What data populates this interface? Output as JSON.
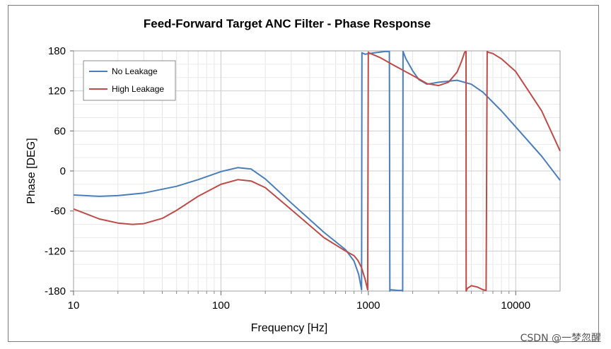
{
  "watermark": "CSDN @一梦忽醒",
  "chart_data": {
    "type": "line",
    "title": "Feed-Forward Target ANC Filter - Phase Response",
    "xlabel": "Frequency [Hz]",
    "ylabel": "Phase [DEG]",
    "xscale": "log",
    "xlim": [
      10,
      20000
    ],
    "ylim": [
      -180,
      180
    ],
    "xticks": [
      10,
      100,
      1000,
      10000
    ],
    "xtick_labels": [
      "10",
      "100",
      "1000",
      "10000"
    ],
    "yticks": [
      -180,
      -120,
      -60,
      0,
      60,
      120,
      180
    ],
    "ytick_labels": [
      "-180",
      "-120",
      "-60",
      "0",
      "60",
      "120",
      "180"
    ],
    "grid": true,
    "legend_position": "top-left",
    "series": [
      {
        "name": "No Leakage",
        "color": "#4a7ebb",
        "x": [
          10,
          15,
          20,
          30,
          50,
          70,
          100,
          130,
          160,
          200,
          300,
          500,
          700,
          800,
          860,
          900,
          905,
          950,
          1100,
          1300,
          1390,
          1400,
          1410,
          1600,
          1700,
          1710,
          1720,
          1800,
          2000,
          2200,
          2500,
          3000,
          4000,
          5000,
          6000,
          8000,
          10000,
          15000,
          20000
        ],
        "y": [
          -36,
          -38,
          -37,
          -33,
          -23,
          -13,
          -1,
          5,
          3,
          -12,
          -48,
          -92,
          -118,
          -135,
          -155,
          -178,
          177,
          175,
          177,
          179,
          179,
          -180,
          -178,
          -179,
          -179,
          -180,
          179,
          168,
          150,
          137,
          130,
          133,
          136,
          130,
          118,
          90,
          66,
          22,
          -14
        ]
      },
      {
        "name": "High Leakage",
        "color": "#be4b48",
        "x": [
          10,
          15,
          20,
          25,
          30,
          40,
          50,
          70,
          100,
          130,
          160,
          200,
          300,
          500,
          700,
          800,
          850,
          900,
          950,
          990,
          1000,
          1010,
          1200,
          1500,
          2000,
          2500,
          3000,
          3500,
          4000,
          4300,
          4500,
          4600,
          4610,
          4700,
          5000,
          5500,
          6000,
          6300,
          6400,
          6500,
          7000,
          8000,
          10000,
          15000,
          20000
        ],
        "y": [
          -57,
          -72,
          -78,
          -80,
          -79,
          -71,
          -59,
          -38,
          -20,
          -13,
          -15,
          -25,
          -58,
          -100,
          -120,
          -127,
          -134,
          -145,
          -162,
          -178,
          178,
          177,
          170,
          158,
          143,
          131,
          128,
          133,
          148,
          165,
          178,
          179,
          -180,
          -176,
          -172,
          -174,
          -178,
          -179,
          179,
          178,
          176,
          168,
          149,
          90,
          30
        ]
      }
    ]
  }
}
